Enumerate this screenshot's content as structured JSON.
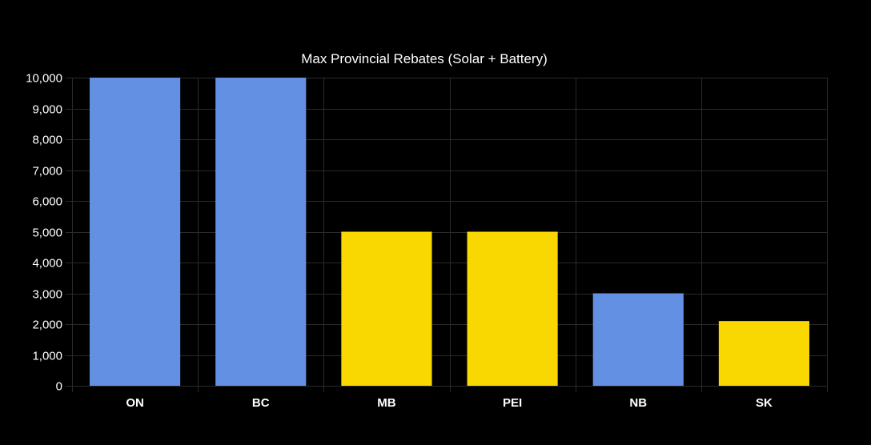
{
  "chart_data": {
    "type": "bar",
    "title": "Max Provincial Rebates (Solar + Battery)",
    "xlabel": "",
    "ylabel": "",
    "categories": [
      "ON",
      "BC",
      "MB",
      "PEI",
      "NB",
      "SK"
    ],
    "values": [
      10000,
      10000,
      5000,
      5000,
      3000,
      2100
    ],
    "bar_colors": [
      "#6390e3",
      "#6390e3",
      "#f8d800",
      "#f8d800",
      "#6390e3",
      "#f8d800"
    ],
    "ylim": [
      0,
      10000
    ],
    "y_ticks": [
      0,
      1000,
      2000,
      3000,
      4000,
      5000,
      6000,
      7000,
      8000,
      9000,
      10000
    ],
    "y_tick_labels": [
      "0",
      "1,000",
      "2,000",
      "3,000",
      "4,000",
      "5,000",
      "6,000",
      "7,000",
      "8,000",
      "9,000",
      "10,000"
    ],
    "grid": true,
    "legend": "none"
  },
  "colors": {
    "background": "#000000",
    "grid": "#2a2a2a",
    "text": "#ffffff"
  }
}
